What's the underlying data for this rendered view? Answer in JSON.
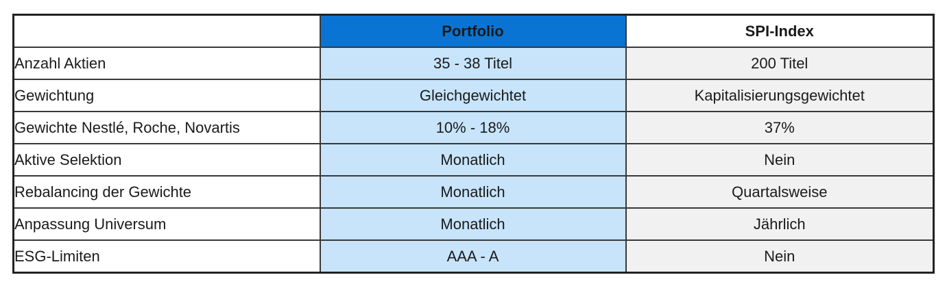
{
  "table": {
    "columns": [
      {
        "label": ""
      },
      {
        "label": "Portfolio"
      },
      {
        "label": "SPI-Index"
      }
    ],
    "rows": [
      {
        "label": "Anzahl Aktien",
        "portfolio": "35 - 38 Titel",
        "spi": "200 Titel"
      },
      {
        "label": "Gewichtung",
        "portfolio": "Gleichgewichtet",
        "spi": "Kapitalisierungsgewichtet"
      },
      {
        "label": "Gewichte Nestlé, Roche, Novartis",
        "portfolio": "10% - 18%",
        "spi": "37%"
      },
      {
        "label": "Aktive Selektion",
        "portfolio": "Monatlich",
        "spi": "Nein"
      },
      {
        "label": "Rebalancing der Gewichte",
        "portfolio": "Monatlich",
        "spi": "Quartalsweise"
      },
      {
        "label": "Anpassung Universum",
        "portfolio": "Monatlich",
        "spi": "Jährlich"
      },
      {
        "label": "ESG-Limiten",
        "portfolio": "AAA - A",
        "spi": "Nein"
      }
    ]
  },
  "colors": {
    "header_blue": "#0a74d4",
    "portfolio_cell_blue": "#c7e4fa",
    "spi_cell_gray": "#f1f1f1",
    "border_inner": "#383838",
    "border_outer": "#222222",
    "text": "#1a1a1a"
  }
}
